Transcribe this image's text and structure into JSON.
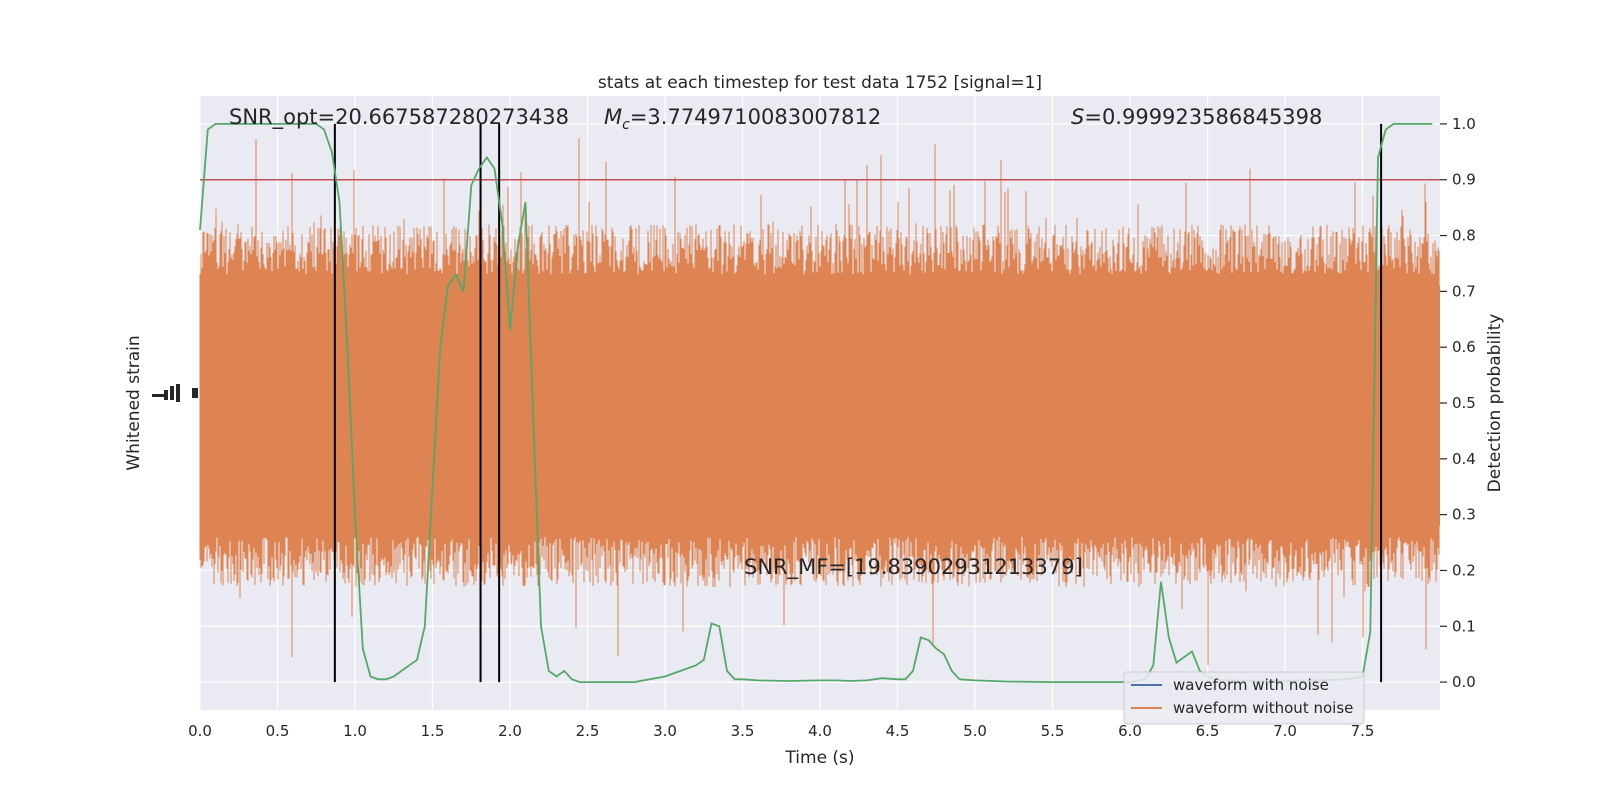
{
  "chart_data": {
    "type": "line",
    "title": "stats at each timestep for test data 1752 [signal=1]",
    "xlabel": "Time (s)",
    "ylabel_left": "Whitened strain",
    "ylabel_right": "Detection probability",
    "xlim": [
      0.0,
      8.0
    ],
    "ylim_right": [
      -0.05,
      1.05
    ],
    "x_ticks": [
      "0.0",
      "0.5",
      "1.0",
      "1.5",
      "2.0",
      "2.5",
      "3.0",
      "3.5",
      "4.0",
      "4.5",
      "5.0",
      "5.5",
      "6.0",
      "6.5",
      "7.0",
      "7.5"
    ],
    "y_ticks_right": [
      "0.0",
      "0.1",
      "0.2",
      "0.3",
      "0.4",
      "0.5",
      "0.6",
      "0.7",
      "0.8",
      "0.9",
      "1.0"
    ],
    "grid": true,
    "legend_position": "lower-right",
    "annotations": {
      "snr_opt": "SNR_opt=20.667587280273438",
      "mc_symbol": "M",
      "mc_subscript": "c",
      "mc_value": "=3.7749710083007812",
      "s_symbol": "S",
      "s_value": "=0.999923586845398",
      "snr_mf": "SNR_MF=[19.83902931213379]"
    },
    "threshold": 0.9,
    "vertical_lines_x": [
      0.87,
      1.81,
      1.93,
      7.62
    ],
    "series": [
      {
        "name": "waveform with noise",
        "color": "#4c72b0",
        "values": []
      },
      {
        "name": "waveform without noise",
        "color": "#dd8452",
        "band": [
          0.28,
          0.71
        ],
        "spike_range": [
          0.02,
          0.99
        ]
      },
      {
        "color": "#55a868",
        "x": [
          0.0,
          0.05,
          0.1,
          0.2,
          0.3,
          0.4,
          0.5,
          0.6,
          0.7,
          0.75,
          0.8,
          0.85,
          0.9,
          0.95,
          1.0,
          1.05,
          1.1,
          1.15,
          1.2,
          1.25,
          1.3,
          1.35,
          1.4,
          1.45,
          1.5,
          1.55,
          1.6,
          1.65,
          1.7,
          1.75,
          1.8,
          1.85,
          1.9,
          1.95,
          2.0,
          2.05,
          2.1,
          2.15,
          2.2,
          2.25,
          2.3,
          2.35,
          2.4,
          2.45,
          2.5,
          2.6,
          2.7,
          2.8,
          2.9,
          3.0,
          3.1,
          3.2,
          3.25,
          3.3,
          3.35,
          3.4,
          3.45,
          3.5,
          3.6,
          3.8,
          4.0,
          4.1,
          4.2,
          4.3,
          4.4,
          4.5,
          4.55,
          4.6,
          4.65,
          4.7,
          4.75,
          4.8,
          4.85,
          4.9,
          5.0,
          5.2,
          5.5,
          5.8,
          6.0,
          6.1,
          6.15,
          6.2,
          6.25,
          6.3,
          6.35,
          6.4,
          6.45,
          6.5,
          6.55,
          6.6,
          6.8,
          7.0,
          7.2,
          7.4,
          7.5,
          7.55,
          7.6,
          7.65,
          7.7,
          7.75,
          7.8,
          7.85,
          7.9,
          7.95
        ],
        "values": [
          0.81,
          0.99,
          1.0,
          1.0,
          1.0,
          1.0,
          1.0,
          1.0,
          1.0,
          1.0,
          0.99,
          0.95,
          0.86,
          0.6,
          0.3,
          0.06,
          0.01,
          0.005,
          0.005,
          0.01,
          0.02,
          0.03,
          0.04,
          0.1,
          0.35,
          0.6,
          0.71,
          0.73,
          0.7,
          0.89,
          0.92,
          0.94,
          0.92,
          0.82,
          0.63,
          0.78,
          0.86,
          0.47,
          0.1,
          0.02,
          0.01,
          0.02,
          0.005,
          0.0,
          0.0,
          0.0,
          0.0,
          0.0,
          0.005,
          0.01,
          0.02,
          0.03,
          0.04,
          0.105,
          0.1,
          0.02,
          0.005,
          0.005,
          0.003,
          0.002,
          0.003,
          0.003,
          0.002,
          0.003,
          0.007,
          0.005,
          0.005,
          0.02,
          0.08,
          0.075,
          0.06,
          0.05,
          0.02,
          0.005,
          0.003,
          0.001,
          0.0,
          0.0,
          0.0,
          0.005,
          0.03,
          0.18,
          0.08,
          0.035,
          0.045,
          0.055,
          0.02,
          0.01,
          0.005,
          0.003,
          0.002,
          0.002,
          0.003,
          0.005,
          0.01,
          0.09,
          0.94,
          0.99,
          1.0,
          1.0,
          1.0,
          1.0,
          1.0,
          1.0
        ]
      }
    ]
  },
  "colors": {
    "plot_background": "#eaeaf2",
    "grid": "#ffffff",
    "threshold_line": "#c44e52",
    "vertical_lines": "#000000",
    "text": "#262626"
  }
}
